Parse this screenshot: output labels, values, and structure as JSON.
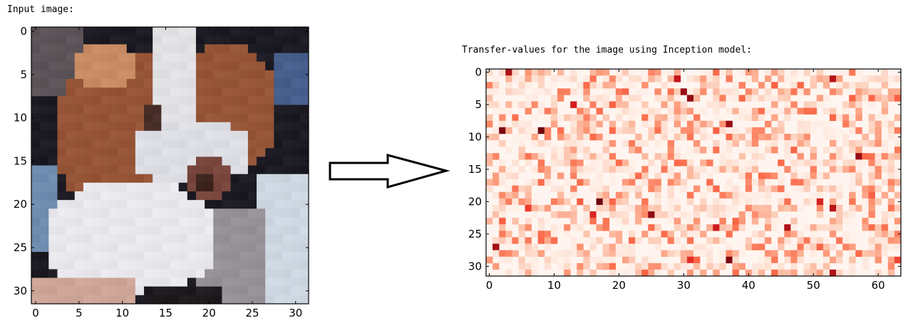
{
  "captions": {
    "input": "Input image:",
    "transfer": "Transfer-values for the image using Inception model:"
  },
  "chart_data": [
    {
      "type": "heatmap",
      "content": "32x32 RGB image of a brown-and-white dog",
      "xlim": [
        0,
        31
      ],
      "ylim": [
        31,
        0
      ],
      "xticks": [
        "0",
        "5",
        "10",
        "15",
        "20",
        "25",
        "30"
      ],
      "yticks": [
        "0",
        "5",
        "10",
        "15",
        "20",
        "25",
        "30"
      ]
    },
    {
      "type": "heatmap",
      "colormap": "Reds",
      "rows": 32,
      "cols": 64,
      "xlim": [
        0,
        63
      ],
      "ylim": [
        31,
        0
      ],
      "xticks": [
        "0",
        "10",
        "20",
        "30",
        "40",
        "50",
        "60"
      ],
      "yticks": [
        "0",
        "5",
        "10",
        "15",
        "20",
        "25",
        "30"
      ]
    }
  ]
}
